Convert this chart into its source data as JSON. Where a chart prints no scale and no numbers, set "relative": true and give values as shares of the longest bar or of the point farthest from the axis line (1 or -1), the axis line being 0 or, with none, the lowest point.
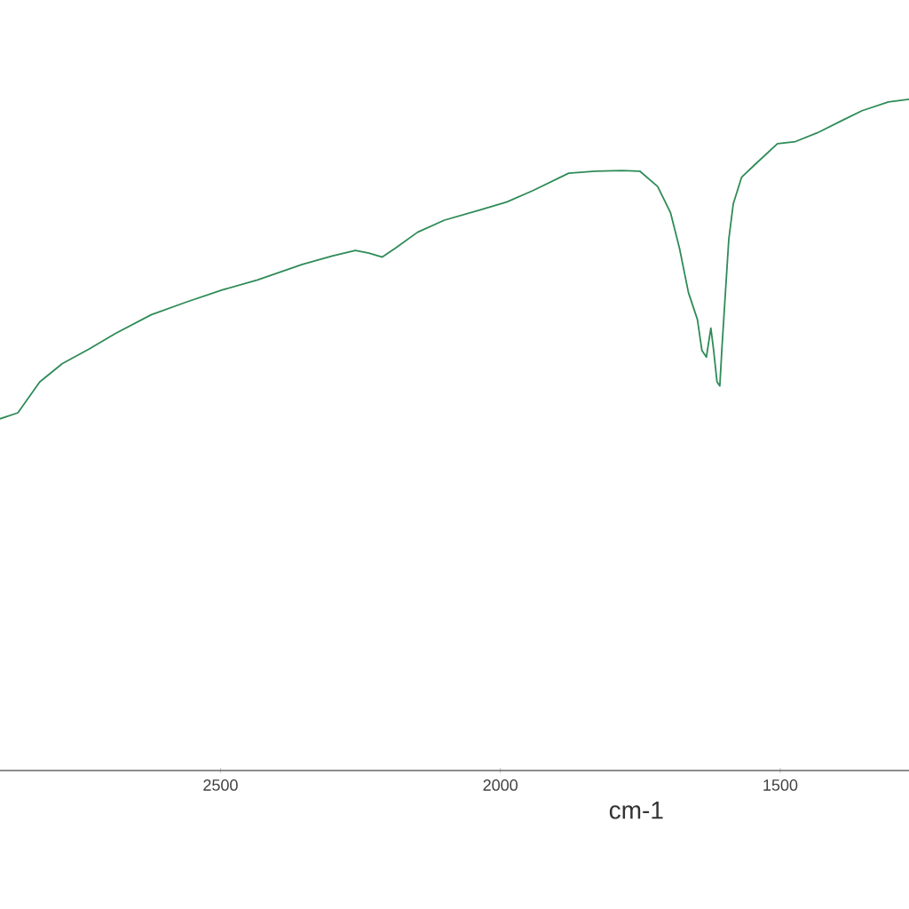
{
  "chart_data": {
    "type": "line",
    "xlabel": "cm-1",
    "relative": true,
    "color": "#2e8b57",
    "xlim": [
      2894,
      1270
    ],
    "xticks": [
      2500,
      2000,
      1500
    ],
    "x": [
      2894,
      2862,
      2823,
      2783,
      2735,
      2688,
      2624,
      2561,
      2497,
      2434,
      2354,
      2299,
      2259,
      2235,
      2211,
      2188,
      2148,
      2100,
      2037,
      1989,
      1942,
      1878,
      1831,
      1783,
      1751,
      1719,
      1696,
      1680,
      1664,
      1648,
      1640,
      1632,
      1624,
      1619,
      1613,
      1608,
      1604,
      1597,
      1592,
      1584,
      1569,
      1545,
      1505,
      1473,
      1434,
      1386,
      1354,
      1307,
      1270
    ],
    "values": [
      0.524,
      0.533,
      0.579,
      0.606,
      0.628,
      0.651,
      0.679,
      0.698,
      0.716,
      0.731,
      0.754,
      0.767,
      0.775,
      0.771,
      0.765,
      0.778,
      0.802,
      0.82,
      0.835,
      0.847,
      0.864,
      0.89,
      0.893,
      0.894,
      0.893,
      0.87,
      0.831,
      0.778,
      0.712,
      0.672,
      0.626,
      0.616,
      0.659,
      0.626,
      0.579,
      0.573,
      0.632,
      0.725,
      0.791,
      0.844,
      0.884,
      0.903,
      0.934,
      0.937,
      0.95,
      0.97,
      0.983,
      0.996,
      1.0
    ]
  }
}
